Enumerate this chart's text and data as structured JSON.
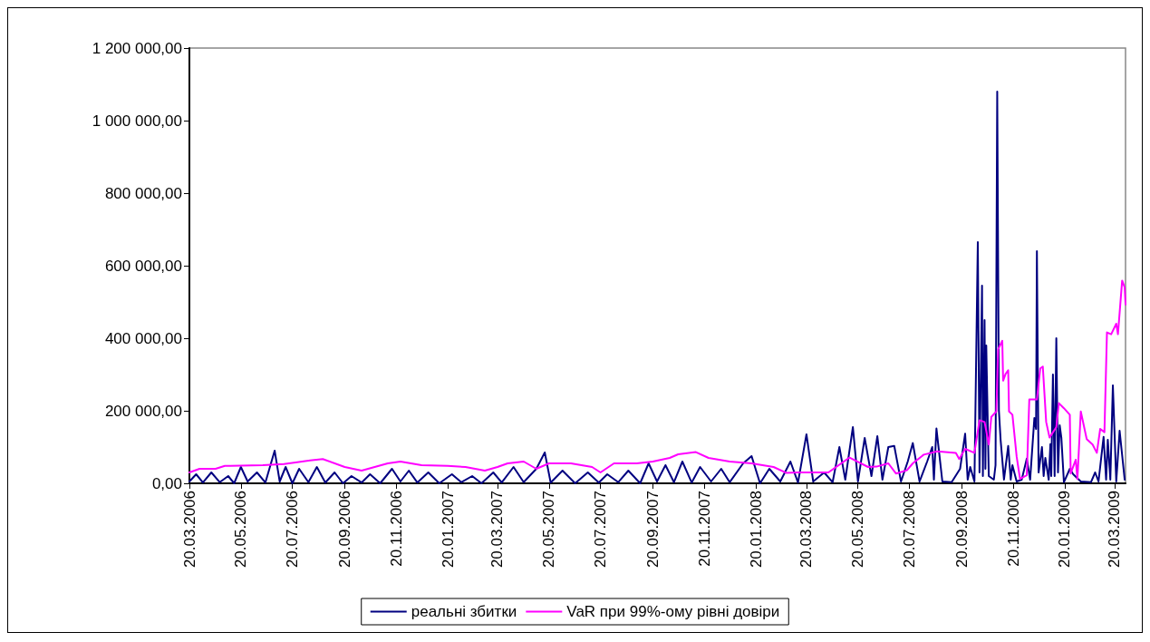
{
  "chart_data": {
    "type": "line",
    "xlim": [
      "2006-03-20",
      "2009-04-02"
    ],
    "xticks": [
      {
        "value": "2006-03-20",
        "label": "20.03.2006"
      },
      {
        "value": "2006-05-20",
        "label": "20.05.2006"
      },
      {
        "value": "2006-07-20",
        "label": "20.07.2006"
      },
      {
        "value": "2006-09-20",
        "label": "20.09.2006"
      },
      {
        "value": "2006-11-20",
        "label": "20.11.2006"
      },
      {
        "value": "2007-01-20",
        "label": "20.01.2007"
      },
      {
        "value": "2007-03-20",
        "label": "20.03.2007"
      },
      {
        "value": "2007-05-20",
        "label": "20.05.2007"
      },
      {
        "value": "2007-07-20",
        "label": "20.07.2007"
      },
      {
        "value": "2007-09-20",
        "label": "20.09.2007"
      },
      {
        "value": "2007-11-20",
        "label": "20.11.2007"
      },
      {
        "value": "2008-01-20",
        "label": "20.01.2008"
      },
      {
        "value": "2008-03-20",
        "label": "20.03.2008"
      },
      {
        "value": "2008-05-20",
        "label": "20.05.2008"
      },
      {
        "value": "2008-07-20",
        "label": "20.07.2008"
      },
      {
        "value": "2008-09-20",
        "label": "20.09.2008"
      },
      {
        "value": "2008-11-20",
        "label": "20.11.2008"
      },
      {
        "value": "2009-01-20",
        "label": "20.01.2009"
      },
      {
        "value": "2009-03-20",
        "label": "20.03.2009"
      }
    ],
    "ylim": [
      0,
      1200000
    ],
    "yticks": [
      {
        "value": 0,
        "label": "0,00"
      },
      {
        "value": 200000,
        "label": "200 000,00"
      },
      {
        "value": 400000,
        "label": "400 000,00"
      },
      {
        "value": 600000,
        "label": "600 000,00"
      },
      {
        "value": 800000,
        "label": "800 000,00"
      },
      {
        "value": 1000000,
        "label": "1 000 000,00"
      },
      {
        "value": 1200000,
        "label": "1 200 000,00"
      }
    ],
    "grid": false,
    "legend": "bottom",
    "marker": "none",
    "line_style": "solid",
    "series": [
      {
        "name": "реальні збитки",
        "color": "#000080",
        "x": [
          "2006-03-20",
          "2006-03-28",
          "2006-04-05",
          "2006-04-15",
          "2006-04-25",
          "2006-05-05",
          "2006-05-12",
          "2006-05-20",
          "2006-05-28",
          "2006-06-08",
          "2006-06-18",
          "2006-06-29",
          "2006-07-05",
          "2006-07-12",
          "2006-07-20",
          "2006-07-28",
          "2006-08-08",
          "2006-08-18",
          "2006-08-28",
          "2006-09-08",
          "2006-09-18",
          "2006-09-28",
          "2006-10-10",
          "2006-10-20",
          "2006-11-01",
          "2006-11-15",
          "2006-11-25",
          "2006-12-05",
          "2006-12-15",
          "2006-12-28",
          "2007-01-10",
          "2007-01-25",
          "2007-02-05",
          "2007-02-18",
          "2007-03-01",
          "2007-03-15",
          "2007-03-25",
          "2007-04-08",
          "2007-04-20",
          "2007-05-05",
          "2007-05-15",
          "2007-05-22",
          "2007-06-05",
          "2007-06-20",
          "2007-07-05",
          "2007-07-18",
          "2007-07-28",
          "2007-08-10",
          "2007-08-22",
          "2007-09-05",
          "2007-09-15",
          "2007-09-25",
          "2007-10-05",
          "2007-10-15",
          "2007-10-25",
          "2007-11-05",
          "2007-11-15",
          "2007-11-28",
          "2007-12-10",
          "2007-12-20",
          "2008-01-05",
          "2008-01-15",
          "2008-01-25",
          "2008-02-05",
          "2008-02-18",
          "2008-03-01",
          "2008-03-10",
          "2008-03-20",
          "2008-03-28",
          "2008-04-10",
          "2008-04-20",
          "2008-04-28",
          "2008-05-05",
          "2008-05-14",
          "2008-05-20",
          "2008-05-28",
          "2008-06-05",
          "2008-06-12",
          "2008-06-18",
          "2008-06-25",
          "2008-07-02",
          "2008-07-10",
          "2008-07-18",
          "2008-07-24",
          "2008-08-01",
          "2008-08-10",
          "2008-08-16",
          "2008-08-18",
          "2008-08-21",
          "2008-08-28",
          "2008-09-08",
          "2008-09-18",
          "2008-09-24",
          "2008-09-27",
          "2008-09-30",
          "2008-10-05",
          "2008-10-09",
          "2008-10-11",
          "2008-10-14",
          "2008-10-15",
          "2008-10-17",
          "2008-10-18",
          "2008-10-19",
          "2008-10-22",
          "2008-10-28",
          "2008-10-30",
          "2008-11-01",
          "2008-11-03",
          "2008-11-05",
          "2008-11-09",
          "2008-11-14",
          "2008-11-17",
          "2008-11-19",
          "2008-11-24",
          "2008-11-30",
          "2008-12-06",
          "2008-12-10",
          "2008-12-15",
          "2008-12-17",
          "2008-12-18",
          "2008-12-20",
          "2008-12-24",
          "2008-12-26",
          "2008-12-28",
          "2009-01-01",
          "2009-01-03",
          "2009-01-04",
          "2009-01-06",
          "2009-01-08",
          "2009-01-10",
          "2009-01-12",
          "2009-01-14",
          "2009-01-16",
          "2009-01-19",
          "2009-01-26",
          "2009-01-30",
          "2009-02-08",
          "2009-02-20",
          "2009-02-25",
          "2009-03-01",
          "2009-03-07",
          "2009-03-10",
          "2009-03-12",
          "2009-03-15",
          "2009-03-18",
          "2009-03-22",
          "2009-03-26",
          "2009-04-01"
        ],
        "values": [
          5000,
          25000,
          2000,
          30000,
          3000,
          20000,
          0,
          45000,
          5000,
          30000,
          2000,
          90000,
          5000,
          45000,
          0,
          40000,
          3000,
          45000,
          2000,
          30000,
          0,
          20000,
          2000,
          25000,
          0,
          40000,
          5000,
          35000,
          2000,
          30000,
          0,
          25000,
          3000,
          20000,
          0,
          30000,
          2000,
          45000,
          3000,
          40000,
          85000,
          2000,
          35000,
          0,
          30000,
          2000,
          25000,
          3000,
          35000,
          0,
          55000,
          5000,
          50000,
          3000,
          60000,
          2000,
          45000,
          5000,
          40000,
          3000,
          55000,
          75000,
          0,
          40000,
          5000,
          60000,
          2000,
          135000,
          5000,
          30000,
          3000,
          100000,
          10000,
          155000,
          5000,
          125000,
          20000,
          130000,
          10000,
          100000,
          103000,
          5000,
          60000,
          111000,
          5000,
          60000,
          100000,
          10000,
          151000,
          5000,
          3000,
          40000,
          137000,
          10000,
          45000,
          5000,
          665000,
          30000,
          545000,
          20000,
          450000,
          40000,
          380000,
          20000,
          10000,
          50000,
          1080000,
          200000,
          120000,
          10000,
          103000,
          10000,
          50000,
          5000,
          10000,
          68000,
          10000,
          180000,
          150000,
          640000,
          30000,
          100000,
          20000,
          70000,
          10000,
          108000,
          20000,
          300000,
          20000,
          400000,
          30000,
          160000,
          125000,
          3000,
          40000,
          25000,
          5000,
          3000,
          30000,
          5000,
          128000,
          10000,
          120000,
          10000,
          270000,
          5000,
          145000,
          10000
        ]
      },
      {
        "name": "VaR при 99%-ому рівні довіри",
        "color": "#ff00ff",
        "x": [
          "2006-03-20",
          "2006-04-01",
          "2006-04-20",
          "2006-05-01",
          "2006-06-15",
          "2006-07-10",
          "2006-08-10",
          "2006-08-25",
          "2006-09-20",
          "2006-10-10",
          "2006-11-10",
          "2006-11-25",
          "2006-12-20",
          "2007-01-20",
          "2007-02-10",
          "2007-03-05",
          "2007-03-20",
          "2007-04-01",
          "2007-04-20",
          "2007-05-05",
          "2007-05-20",
          "2007-06-15",
          "2007-07-10",
          "2007-07-20",
          "2007-08-05",
          "2007-09-01",
          "2007-09-20",
          "2007-10-10",
          "2007-10-20",
          "2007-11-10",
          "2007-11-25",
          "2007-12-20",
          "2008-01-15",
          "2008-02-10",
          "2008-02-25",
          "2008-03-10",
          "2008-04-15",
          "2008-05-10",
          "2008-06-01",
          "2008-06-11",
          "2008-06-25",
          "2008-07-04",
          "2008-07-17",
          "2008-07-24",
          "2008-08-06",
          "2008-08-22",
          "2008-09-13",
          "2008-09-17",
          "2008-09-24",
          "2008-10-05",
          "2008-10-11",
          "2008-10-17",
          "2008-10-22",
          "2008-10-25",
          "2008-10-31",
          "2008-11-02",
          "2008-11-07",
          "2008-11-08",
          "2008-11-11",
          "2008-11-14",
          "2008-11-15",
          "2008-11-19",
          "2008-11-24",
          "2008-11-28",
          "2008-12-06",
          "2008-12-09",
          "2008-12-18",
          "2008-12-22",
          "2008-12-25",
          "2008-12-29",
          "2009-01-02",
          "2009-01-10",
          "2009-01-13",
          "2009-01-19",
          "2009-01-26",
          "2009-01-27",
          "2009-02-02",
          "2009-02-04",
          "2009-02-08",
          "2009-02-15",
          "2009-02-22",
          "2009-02-27",
          "2009-03-03",
          "2009-03-08",
          "2009-03-11",
          "2009-03-16",
          "2009-03-22",
          "2009-03-24",
          "2009-03-29",
          "2009-04-01",
          "2009-04-02"
        ],
        "values": [
          30000,
          40000,
          40000,
          48000,
          50000,
          53000,
          63000,
          67000,
          45000,
          35000,
          55000,
          60000,
          50000,
          48000,
          45000,
          35000,
          45000,
          55000,
          60000,
          40000,
          55000,
          55000,
          45000,
          30000,
          55000,
          55000,
          60000,
          70000,
          80000,
          86000,
          70000,
          60000,
          55000,
          45000,
          29000,
          30000,
          30000,
          71000,
          45000,
          46000,
          55000,
          27000,
          36000,
          55000,
          79000,
          88000,
          84000,
          67000,
          95000,
          84000,
          174000,
          169000,
          107000,
          183000,
          198000,
          369000,
          393000,
          283000,
          302000,
          312000,
          198000,
          189000,
          74000,
          12000,
          22000,
          231000,
          231000,
          317000,
          322000,
          169000,
          126000,
          155000,
          221000,
          207000,
          189000,
          27000,
          65000,
          12000,
          198000,
          122000,
          107000,
          84000,
          150000,
          141000,
          416000,
          411000,
          440000,
          411000,
          559000,
          540000,
          493000
        ]
      }
    ]
  }
}
